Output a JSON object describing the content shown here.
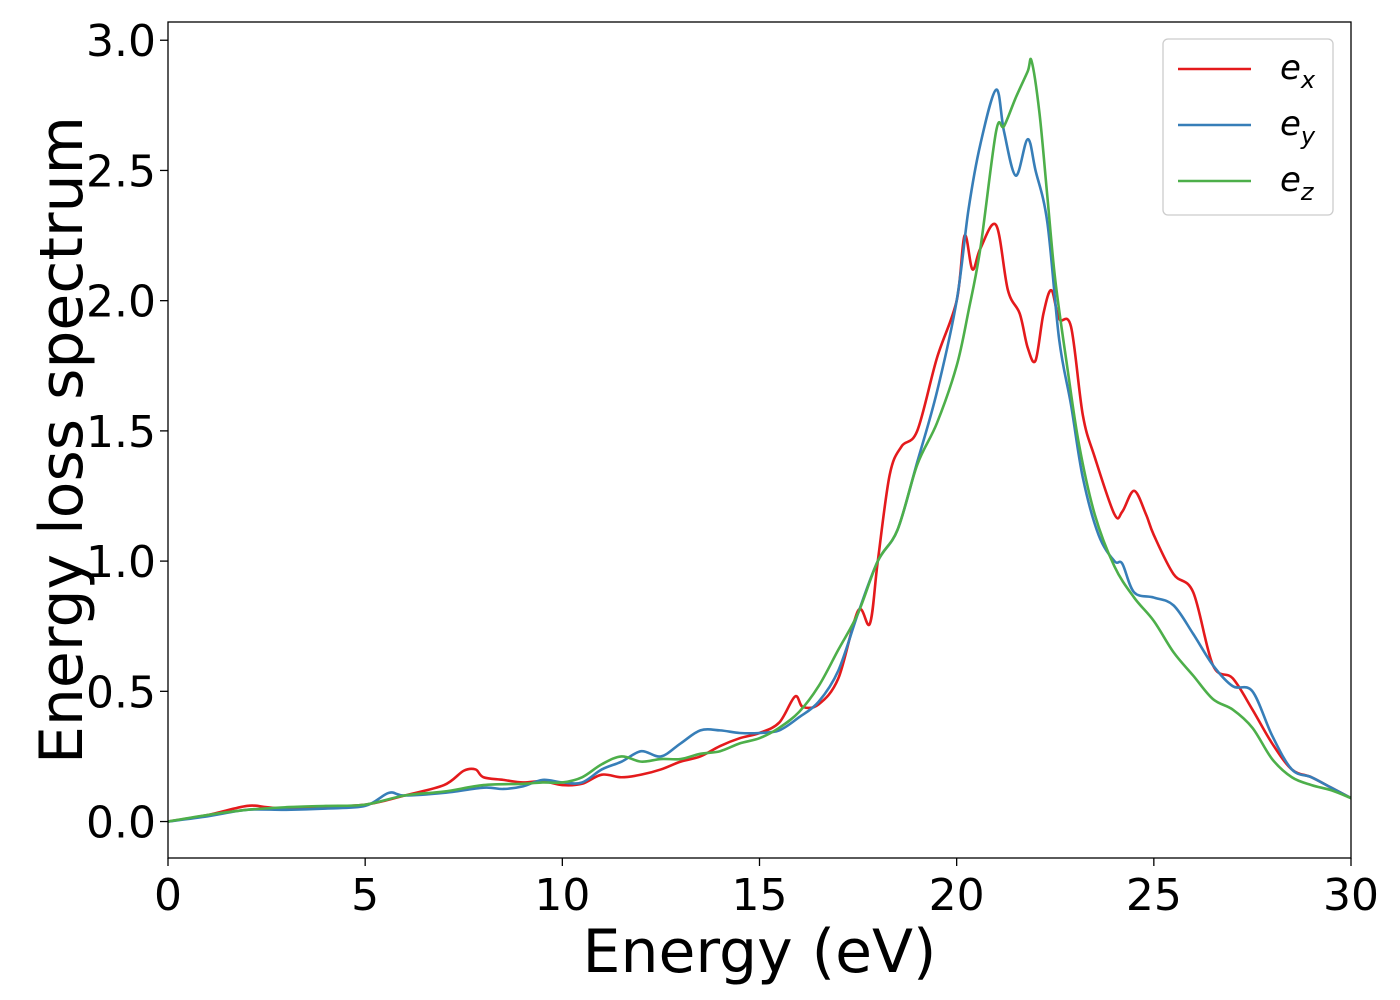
{
  "chart_data": {
    "type": "line",
    "title": "",
    "xlabel": "Energy (eV)",
    "ylabel": "Energy loss spectrum",
    "xlim": [
      0,
      30
    ],
    "ylim": [
      -0.14,
      3.07
    ],
    "xticks": [
      0,
      5,
      10,
      15,
      20,
      25,
      30
    ],
    "xtick_labels": [
      "0",
      "5",
      "10",
      "15",
      "20",
      "25",
      "30"
    ],
    "yticks": [
      0.0,
      0.5,
      1.0,
      1.5,
      2.0,
      2.5,
      3.0
    ],
    "ytick_labels": [
      "0.0",
      "0.5",
      "1.0",
      "1.5",
      "2.0",
      "2.5",
      "3.0"
    ],
    "grid": false,
    "legend_position": "top-right",
    "series": [
      {
        "name": "e_x",
        "label_base": "e",
        "label_sub": "x",
        "color": "#e41a1c",
        "x": [
          0,
          1,
          2,
          2.5,
          3,
          4,
          5,
          5.5,
          6,
          7,
          7.5,
          7.8,
          8,
          8.5,
          9,
          9.5,
          10,
          10.5,
          11,
          11.5,
          12,
          12.5,
          13,
          13.5,
          14,
          14.5,
          15,
          15.5,
          15.9,
          16.1,
          16.5,
          17,
          17.5,
          17.8,
          18,
          18.3,
          18.6,
          19,
          19.5,
          20,
          20.2,
          20.4,
          20.6,
          21,
          21.3,
          21.6,
          21.8,
          22,
          22.2,
          22.4,
          22.6,
          22.9,
          23.2,
          23.5,
          24,
          24.2,
          24.5,
          24.8,
          25,
          25.5,
          26,
          26.5,
          27,
          27.5,
          28,
          28.5,
          29,
          29.5,
          30
        ],
        "y": [
          0.0,
          0.025,
          0.06,
          0.055,
          0.05,
          0.055,
          0.065,
          0.08,
          0.1,
          0.14,
          0.195,
          0.2,
          0.17,
          0.16,
          0.15,
          0.155,
          0.14,
          0.145,
          0.18,
          0.17,
          0.18,
          0.2,
          0.23,
          0.25,
          0.29,
          0.32,
          0.34,
          0.38,
          0.48,
          0.44,
          0.45,
          0.55,
          0.81,
          0.76,
          1.0,
          1.33,
          1.44,
          1.5,
          1.78,
          2.0,
          2.25,
          2.12,
          2.2,
          2.29,
          2.04,
          1.95,
          1.82,
          1.77,
          1.95,
          2.04,
          1.93,
          1.9,
          1.56,
          1.4,
          1.18,
          1.19,
          1.27,
          1.18,
          1.1,
          0.95,
          0.88,
          0.6,
          0.55,
          0.43,
          0.3,
          0.2,
          0.17,
          0.13,
          0.09
        ]
      },
      {
        "name": "e_y",
        "label_base": "e",
        "label_sub": "y",
        "color": "#377eb8",
        "x": [
          0,
          1,
          2,
          3,
          4,
          5,
          5.6,
          6,
          7,
          8,
          8.5,
          9,
          9.5,
          10,
          10.5,
          11,
          11.5,
          12,
          12.5,
          13,
          13.5,
          14,
          14.5,
          15,
          15.5,
          16,
          16.5,
          17,
          17.5,
          18,
          18.5,
          19,
          19.5,
          20,
          20.3,
          20.6,
          21,
          21.2,
          21.5,
          21.8,
          22,
          22.3,
          22.6,
          22.9,
          23.2,
          23.6,
          24,
          24.2,
          24.5,
          25,
          25.5,
          26,
          26.5,
          27,
          27.5,
          28,
          28.5,
          29,
          29.5,
          30
        ],
        "y": [
          0.0,
          0.02,
          0.045,
          0.045,
          0.05,
          0.06,
          0.11,
          0.1,
          0.11,
          0.13,
          0.125,
          0.135,
          0.16,
          0.15,
          0.15,
          0.2,
          0.23,
          0.27,
          0.25,
          0.3,
          0.35,
          0.35,
          0.34,
          0.34,
          0.35,
          0.4,
          0.46,
          0.58,
          0.8,
          1.0,
          1.12,
          1.38,
          1.65,
          2.0,
          2.35,
          2.6,
          2.81,
          2.65,
          2.48,
          2.62,
          2.5,
          2.3,
          1.85,
          1.6,
          1.32,
          1.1,
          1.0,
          0.99,
          0.88,
          0.86,
          0.83,
          0.72,
          0.6,
          0.52,
          0.5,
          0.33,
          0.2,
          0.17,
          0.13,
          0.09
        ]
      },
      {
        "name": "e_z",
        "label_base": "e",
        "label_sub": "z",
        "color": "#4daf4a",
        "x": [
          0,
          1,
          2,
          3,
          4,
          5,
          6,
          7,
          8,
          9,
          9.5,
          10,
          10.5,
          11,
          11.5,
          12,
          12.5,
          13,
          13.5,
          14,
          14.5,
          15,
          15.5,
          16,
          16.5,
          17,
          17.5,
          18,
          18.5,
          19,
          19.5,
          20,
          20.3,
          20.6,
          21,
          21.2,
          21.5,
          21.8,
          21.9,
          22.1,
          22.3,
          22.5,
          22.8,
          23.1,
          23.5,
          24,
          24.5,
          25,
          25.5,
          26,
          26.5,
          27,
          27.5,
          28,
          28.5,
          29,
          29.5,
          30
        ],
        "y": [
          0.0,
          0.025,
          0.045,
          0.055,
          0.06,
          0.065,
          0.1,
          0.115,
          0.14,
          0.145,
          0.15,
          0.15,
          0.17,
          0.22,
          0.25,
          0.23,
          0.24,
          0.24,
          0.26,
          0.27,
          0.3,
          0.32,
          0.36,
          0.42,
          0.52,
          0.66,
          0.8,
          1.0,
          1.12,
          1.37,
          1.53,
          1.75,
          1.96,
          2.2,
          2.65,
          2.67,
          2.78,
          2.88,
          2.92,
          2.72,
          2.4,
          2.08,
          1.75,
          1.45,
          1.18,
          0.98,
          0.86,
          0.77,
          0.65,
          0.56,
          0.47,
          0.43,
          0.36,
          0.24,
          0.17,
          0.14,
          0.12,
          0.09
        ]
      }
    ]
  }
}
